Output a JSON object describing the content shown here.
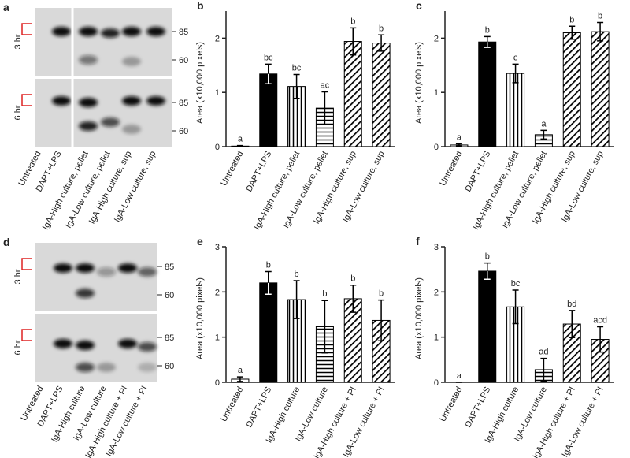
{
  "blots": [
    {
      "panel": "a",
      "rows": [
        "3 hr",
        "6 hr"
      ],
      "markers": [
        "85",
        "60"
      ],
      "lanes": [
        "Untreated",
        "DAPT+LPS",
        "IgA-High culture, pellet",
        "IgA-Low culture, pellet",
        "IgA-High culture, sup",
        "IgA-Low culture, sup"
      ]
    },
    {
      "panel": "d",
      "rows": [
        "3 hr",
        "6 hr"
      ],
      "markers": [
        "85",
        "60"
      ],
      "lanes": [
        "Untreated",
        "DAPT+LPS",
        "IgA-High culture",
        "IgA-Low culture",
        "IgA-High culture + PI",
        "IgA-Low culture + PI"
      ]
    }
  ],
  "chart_data": [
    {
      "type": "bar",
      "panel": "b",
      "ylabel": "Area (x10,000 pixels)",
      "categories": [
        "Untreated",
        "DAPT+LPS",
        "IgA-High culture, pellet",
        "IgA-Low culture, pellet",
        "IgA-High culture, sup",
        "IgA-Low culture, sup"
      ],
      "values": [
        0.01,
        1.34,
        1.11,
        0.71,
        1.94,
        1.91
      ],
      "errors": [
        0.01,
        0.18,
        0.22,
        0.3,
        0.25,
        0.15
      ],
      "letters": [
        "a",
        "bc",
        "bc",
        "ac",
        "b",
        "b"
      ],
      "patterns": [
        "white",
        "black",
        "vertical",
        "horizontal",
        "diagonal",
        "diagonal"
      ],
      "ylim": [
        0,
        2.5
      ],
      "yticks": [
        0,
        1,
        2
      ]
    },
    {
      "type": "bar",
      "panel": "c",
      "ylabel": "Area (x10,000 pixels)",
      "categories": [
        "Untreated",
        "DAPT+LPS",
        "IgA-High culture, pellet",
        "IgA-Low culture, pellet",
        "IgA-High culture, sup",
        "IgA-Low culture, sup"
      ],
      "values": [
        0.03,
        1.93,
        1.35,
        0.22,
        2.1,
        2.12
      ],
      "errors": [
        0.02,
        0.1,
        0.17,
        0.08,
        0.12,
        0.17
      ],
      "letters": [
        "a",
        "b",
        "c",
        "a",
        "b",
        "b"
      ],
      "patterns": [
        "white",
        "black",
        "vertical",
        "horizontal",
        "diagonal",
        "diagonal"
      ],
      "ylim": [
        0,
        2.5
      ],
      "yticks": [
        0,
        1,
        2
      ]
    },
    {
      "type": "bar",
      "panel": "e",
      "ylabel": "Area (x10,000 pixels)",
      "categories": [
        "Untreated",
        "DAPT+LPS",
        "IgA-High culture",
        "IgA-Low culture",
        "IgA-High culture + PI",
        "IgA-Low culture + PI"
      ],
      "values": [
        0.07,
        2.2,
        1.83,
        1.23,
        1.85,
        1.37
      ],
      "errors": [
        0.05,
        0.25,
        0.42,
        0.58,
        0.3,
        0.45
      ],
      "letters": [
        "a",
        "b",
        "b",
        "b",
        "b",
        "b"
      ],
      "patterns": [
        "white",
        "black",
        "vertical",
        "horizontal",
        "diagonal",
        "diagonal"
      ],
      "ylim": [
        0,
        3
      ],
      "yticks": [
        0,
        1,
        2,
        3
      ]
    },
    {
      "type": "bar",
      "panel": "f",
      "ylabel": "Area (x10,000 pixels)",
      "categories": [
        "Untreated",
        "DAPT+LPS",
        "IgA-High culture",
        "IgA-Low culture",
        "IgA-High culture + PI",
        "IgA-Low culture + PI"
      ],
      "values": [
        0,
        2.46,
        1.67,
        0.28,
        1.29,
        0.95
      ],
      "errors": [
        0,
        0.18,
        0.37,
        0.25,
        0.3,
        0.28
      ],
      "letters": [
        "a",
        "b",
        "bc",
        "ad",
        "bd",
        "acd"
      ],
      "patterns": [
        "white",
        "black",
        "vertical",
        "horizontal",
        "diagonal",
        "diagonal"
      ],
      "ylim": [
        0,
        3
      ],
      "yticks": [
        0,
        1,
        2,
        3
      ]
    }
  ]
}
